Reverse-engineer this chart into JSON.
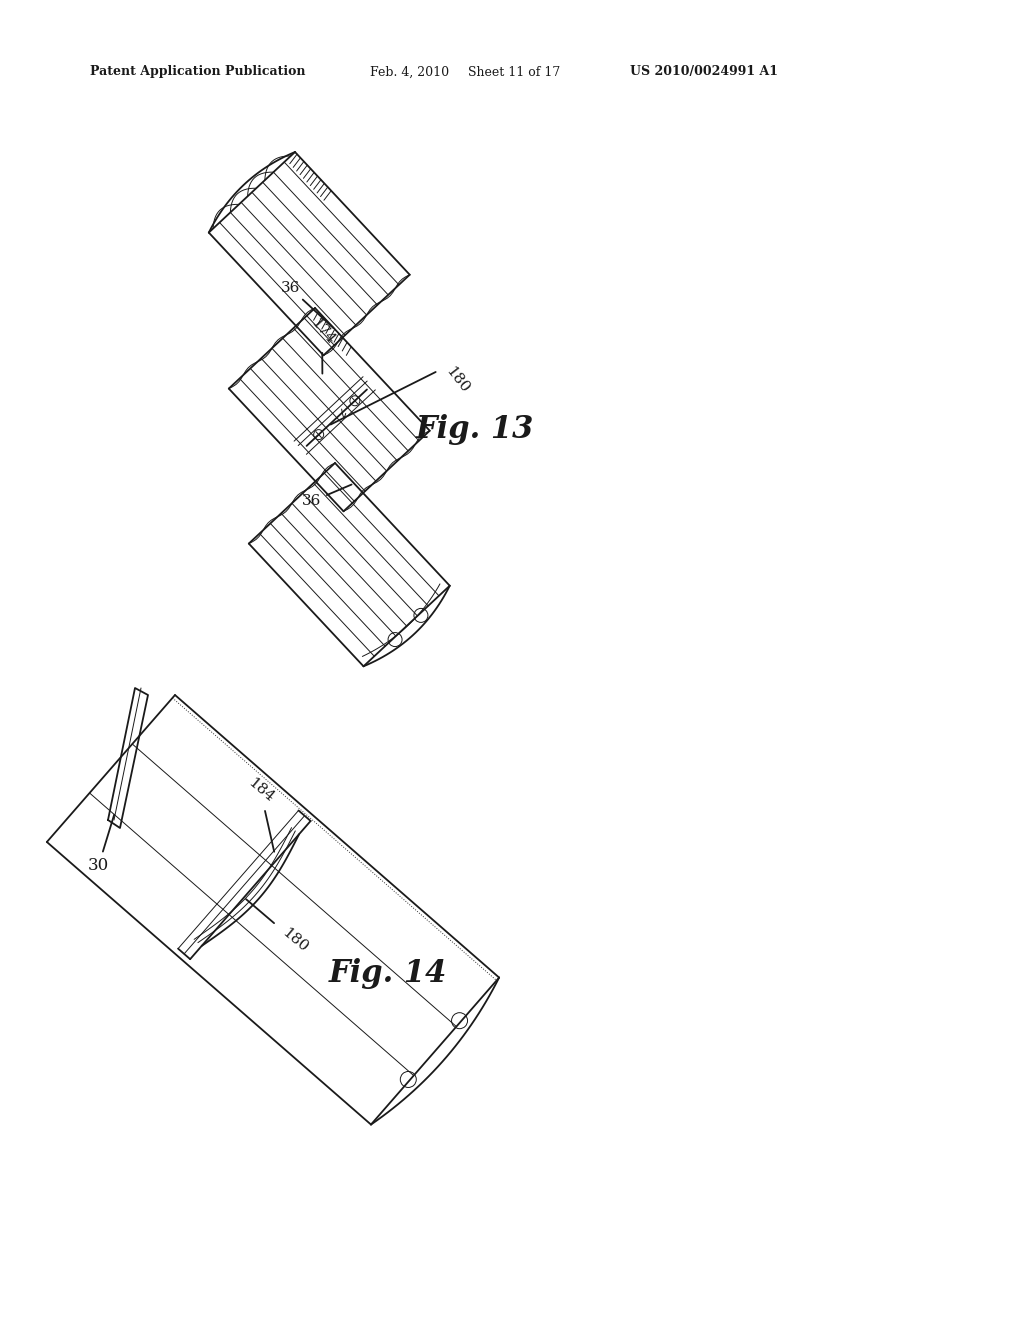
{
  "background_color": "#ffffff",
  "header_text": "Patent Application Publication",
  "header_date": "Feb. 4, 2010",
  "header_sheet": "Sheet 11 of 17",
  "header_patent": "US 2010/0024991 A1",
  "fig13_label": "Fig. 13",
  "fig14_label": "Fig. 14",
  "line_color": "#1a1a1a",
  "text_color": "#1a1a1a",
  "fig_label_color": "#1a1a1a",
  "lw_main": 1.3,
  "lw_thick": 2.0,
  "lw_thin": 0.7
}
